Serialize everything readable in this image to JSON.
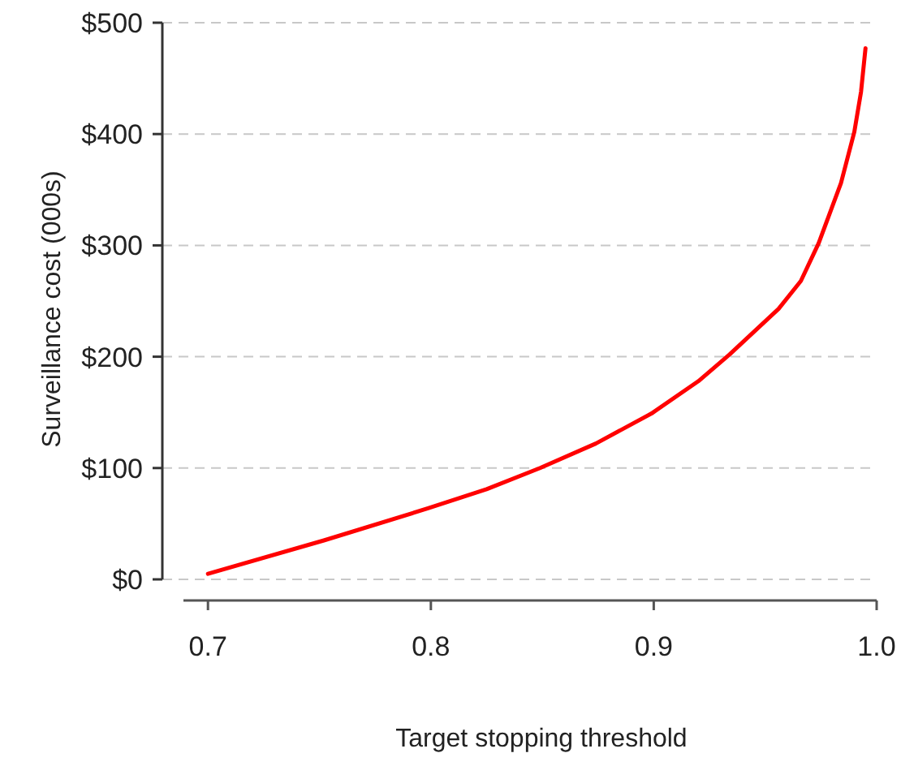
{
  "chart_data": {
    "type": "line",
    "xlabel": "Target stopping threshold",
    "ylabel": "Surveillance cost (000s)",
    "xlim": [
      0.689,
      1.0
    ],
    "xticks": [
      0.7,
      0.8,
      0.9,
      {
        "value": 1.0,
        "label": "1.0"
      }
    ],
    "ylim": [
      0,
      500
    ],
    "yticks": [
      {
        "value": 0,
        "label": "$0"
      },
      {
        "value": 100,
        "label": "$100"
      },
      {
        "value": 200,
        "label": "$200"
      },
      {
        "value": 300,
        "label": "$300"
      },
      {
        "value": 400,
        "label": "$400"
      },
      {
        "value": 500,
        "label": "$500"
      }
    ],
    "grid": "y",
    "line_style": "solid",
    "marker": "none",
    "series": [
      {
        "color": "#ff0000",
        "x": [
          0.7,
          0.752,
          0.799,
          0.825,
          0.849,
          0.874,
          0.899,
          0.92,
          0.934,
          0.956,
          0.966,
          0.974,
          0.984,
          0.99,
          0.993,
          0.995
        ],
        "values": [
          5,
          35,
          64,
          81,
          100,
          122,
          149,
          178,
          202,
          243,
          268,
          302,
          356,
          402,
          438,
          477
        ]
      }
    ]
  }
}
